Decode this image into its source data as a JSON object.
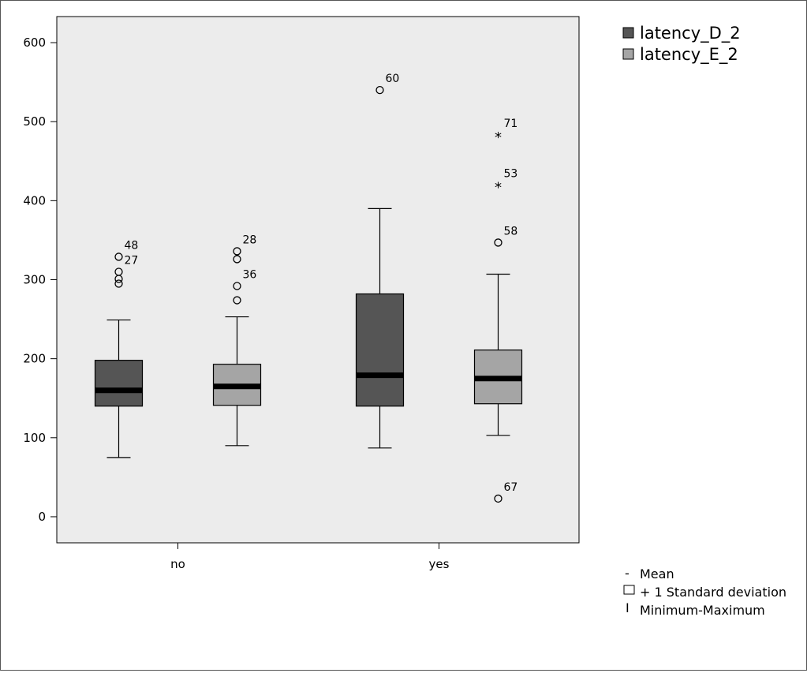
{
  "chart_data": {
    "type": "boxplot",
    "categories": [
      "no",
      "yes"
    ],
    "ylim": [
      -33,
      633
    ],
    "yticks": [
      0,
      100,
      200,
      300,
      400,
      500,
      600
    ],
    "colors": {
      "latency_D_2": "#555555",
      "latency_E_2": "#a5a5a5",
      "plot_bg": "#ececec"
    },
    "series": [
      {
        "name": "latency_D_2",
        "boxes": [
          {
            "category": "no",
            "min": 75,
            "q1": 140,
            "median": 160,
            "q3": 198,
            "max": 249,
            "outliers": [
              {
                "value": 329,
                "label": "48",
                "marker": "circle"
              },
              {
                "value": 310,
                "label": "27",
                "marker": "circle"
              },
              {
                "value": 301,
                "label": "",
                "marker": "circle"
              },
              {
                "value": 295,
                "label": "",
                "marker": "circle"
              }
            ]
          },
          {
            "category": "yes",
            "min": 87,
            "q1": 140,
            "median": 179,
            "q3": 282,
            "max": 390,
            "outliers": [
              {
                "value": 540,
                "label": "60",
                "marker": "circle"
              }
            ]
          }
        ]
      },
      {
        "name": "latency_E_2",
        "boxes": [
          {
            "category": "no",
            "min": 90,
            "q1": 141,
            "median": 165,
            "q3": 193,
            "max": 253,
            "outliers": [
              {
                "value": 336,
                "label": "28",
                "marker": "circle"
              },
              {
                "value": 326,
                "label": "",
                "marker": "circle"
              },
              {
                "value": 292,
                "label": "36",
                "marker": "circle"
              },
              {
                "value": 274,
                "label": "",
                "marker": "circle"
              }
            ]
          },
          {
            "category": "yes",
            "min": 103,
            "q1": 143,
            "median": 175,
            "q3": 211,
            "max": 307,
            "outliers": [
              {
                "value": 483,
                "label": "71",
                "marker": "star"
              },
              {
                "value": 420,
                "label": "53",
                "marker": "star"
              },
              {
                "value": 347,
                "label": "58",
                "marker": "circle"
              },
              {
                "value": 23,
                "label": "67",
                "marker": "circle"
              }
            ]
          }
        ]
      }
    ],
    "legend": {
      "placement": "top-right",
      "entries": [
        "latency_D_2",
        "latency_E_2"
      ]
    },
    "key_notes": {
      "mean": "Mean",
      "sd": "+ 1 Standard deviation",
      "minmax": "Minimum-Maximum",
      "mean_symbol": "-",
      "minmax_symbol": "I"
    }
  }
}
